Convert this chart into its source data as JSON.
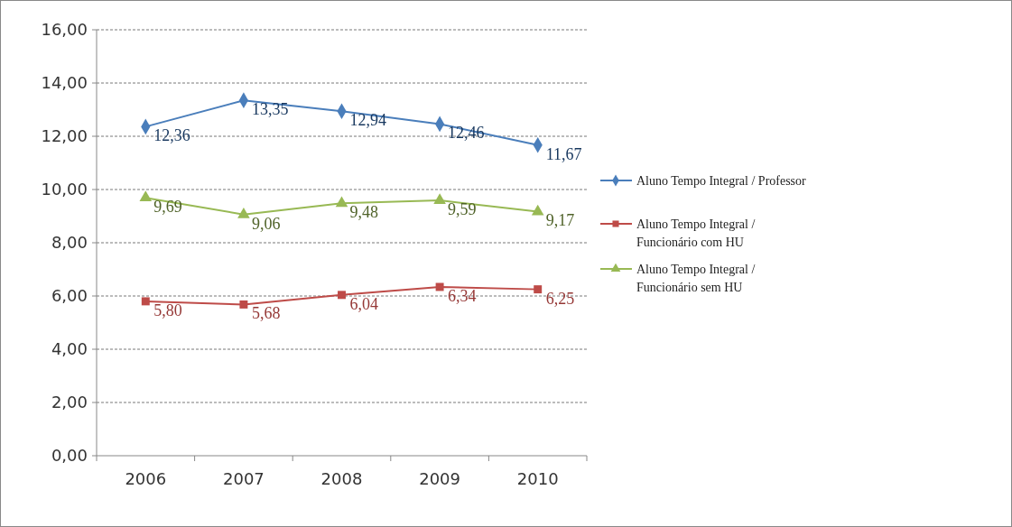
{
  "chart_data": {
    "type": "line",
    "categories": [
      "2006",
      "2007",
      "2008",
      "2009",
      "2010"
    ],
    "series": [
      {
        "name": "Aluno Tempo Integral / Professor",
        "color": "#4a7ebb",
        "marker": "diamond",
        "values": [
          12.36,
          13.35,
          12.94,
          12.46,
          11.67
        ],
        "value_labels": [
          "12,36",
          "13,35",
          "12,94",
          "12,46",
          "11,67"
        ]
      },
      {
        "name": "Aluno Tempo Integral / Funcionário com HU",
        "color": "#be4b48",
        "marker": "square",
        "values": [
          5.8,
          5.68,
          6.04,
          6.34,
          6.25
        ],
        "value_labels": [
          "5,80",
          "5,68",
          "6,04",
          "6,34",
          "6,25"
        ]
      },
      {
        "name": "Aluno Tempo Integral / Funcionário sem HU",
        "color": "#98b954",
        "marker": "triangle",
        "values": [
          9.69,
          9.06,
          9.48,
          9.59,
          9.17
        ],
        "value_labels": [
          "9,69",
          "9,06",
          "9,48",
          "9,59",
          "9,17"
        ]
      }
    ],
    "ylim": [
      0,
      16
    ],
    "yticks": [
      {
        "value": 0,
        "label": "0,00"
      },
      {
        "value": 2,
        "label": "2,00"
      },
      {
        "value": 4,
        "label": "4,00"
      },
      {
        "value": 6,
        "label": "6,00"
      },
      {
        "value": 8,
        "label": "8,00"
      },
      {
        "value": 10,
        "label": "10,00"
      },
      {
        "value": 12,
        "label": "12,00"
      },
      {
        "value": 14,
        "label": "14,00"
      },
      {
        "value": 16,
        "label": "16,00"
      }
    ],
    "grid": "y",
    "legend": "right",
    "line_style": "solid"
  }
}
